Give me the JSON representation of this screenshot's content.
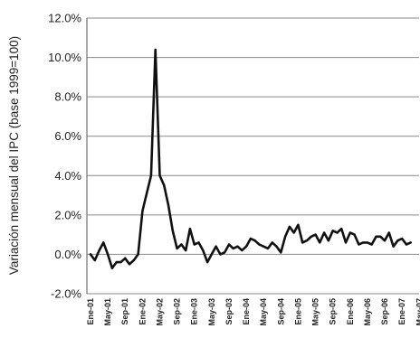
{
  "chart_data": {
    "type": "line",
    "ylabel": "Variación mensual del IPC (base 1999=100)",
    "ylim": [
      -0.02,
      0.12
    ],
    "yticks": [
      {
        "value": 0.12,
        "label": "12.0%"
      },
      {
        "value": 0.1,
        "label": "10.0%"
      },
      {
        "value": 0.08,
        "label": "8.0%"
      },
      {
        "value": 0.06,
        "label": "6.0%"
      },
      {
        "value": 0.04,
        "label": "4.0%"
      },
      {
        "value": 0.02,
        "label": "2.0%"
      },
      {
        "value": 0.0,
        "label": "0.0%"
      },
      {
        "value": -0.02,
        "label": "-2.0%"
      }
    ],
    "xticks": [
      {
        "index": 0,
        "label": "Ene-01"
      },
      {
        "index": 4,
        "label": "May-01"
      },
      {
        "index": 8,
        "label": "Sep-01"
      },
      {
        "index": 12,
        "label": "Ene-02"
      },
      {
        "index": 16,
        "label": "May-02"
      },
      {
        "index": 20,
        "label": "Sep-02"
      },
      {
        "index": 24,
        "label": "Ene-03"
      },
      {
        "index": 28,
        "label": "May-03"
      },
      {
        "index": 32,
        "label": "Sep-03"
      },
      {
        "index": 36,
        "label": "Ene-04"
      },
      {
        "index": 40,
        "label": "May-04"
      },
      {
        "index": 44,
        "label": "Sep-04"
      },
      {
        "index": 48,
        "label": "Ene-05"
      },
      {
        "index": 52,
        "label": "May-05"
      },
      {
        "index": 56,
        "label": "Sep-05"
      },
      {
        "index": 60,
        "label": "Ene-06"
      },
      {
        "index": 64,
        "label": "May-06"
      },
      {
        "index": 68,
        "label": "Sep-06"
      },
      {
        "index": 72,
        "label": "Ene-07"
      },
      {
        "index": 76,
        "label": "May-07"
      }
    ],
    "grid": true,
    "series": [
      {
        "values": [
          0.0,
          -0.003,
          0.002,
          0.006,
          0.0,
          -0.007,
          -0.004,
          -0.004,
          -0.002,
          -0.005,
          -0.003,
          0.0,
          0.022,
          0.031,
          0.04,
          0.104,
          0.04,
          0.035,
          0.025,
          0.012,
          0.003,
          0.005,
          0.002,
          0.013,
          0.005,
          0.006,
          0.002,
          -0.004,
          0.0,
          0.004,
          0.0,
          0.001,
          0.005,
          0.003,
          0.004,
          0.002,
          0.004,
          0.008,
          0.007,
          0.005,
          0.004,
          0.003,
          0.006,
          0.004,
          0.001,
          0.009,
          0.014,
          0.011,
          0.015,
          0.006,
          0.007,
          0.009,
          0.01,
          0.006,
          0.011,
          0.007,
          0.012,
          0.011,
          0.013,
          0.006,
          0.011,
          0.01,
          0.005,
          0.006,
          0.006,
          0.005,
          0.009,
          0.009,
          0.007,
          0.011,
          0.004,
          0.007,
          0.008,
          0.005,
          0.006
        ]
      }
    ]
  }
}
